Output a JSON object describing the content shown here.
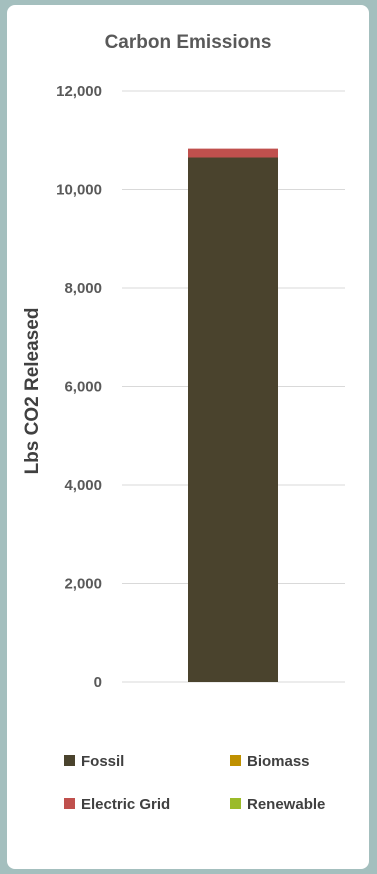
{
  "chart_data": {
    "type": "bar",
    "stacked": true,
    "title": "Carbon Emissions",
    "xlabel": "",
    "ylabel": "Lbs CO2 Released",
    "ylim": [
      0,
      12000
    ],
    "yticks": [
      0,
      2000,
      4000,
      6000,
      8000,
      10000,
      12000
    ],
    "ytick_labels": [
      "0",
      "2,000",
      "4,000",
      "6,000",
      "8,000",
      "10,000",
      "12,000"
    ],
    "grid": true,
    "legend_position": "bottom",
    "categories": [
      ""
    ],
    "series": [
      {
        "name": "Fossil",
        "values": [
          10650
        ],
        "color": "#4a432d"
      },
      {
        "name": "Biomass",
        "values": [
          0
        ],
        "color": "#bf9000"
      },
      {
        "name": "Electric Grid",
        "values": [
          180
        ],
        "color": "#c0504d"
      },
      {
        "name": "Renewable",
        "values": [
          0
        ],
        "color": "#9bbb29"
      }
    ]
  }
}
